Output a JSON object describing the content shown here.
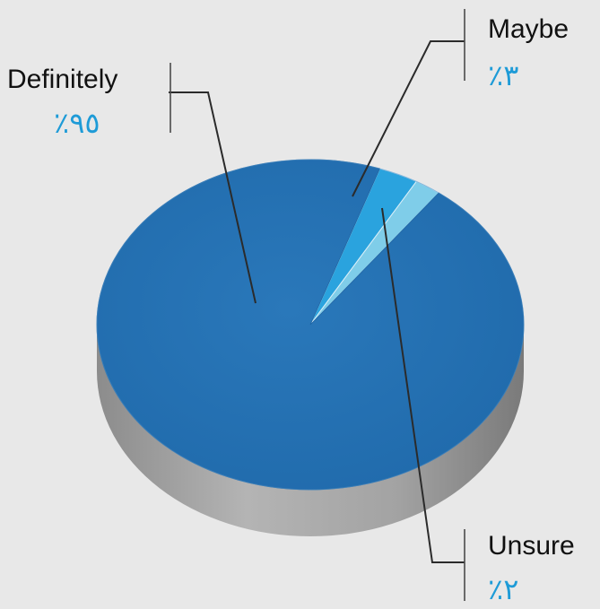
{
  "chart_data": {
    "type": "pie",
    "style": "3d",
    "categories": [
      "Definitely",
      "Maybe",
      "Unsure"
    ],
    "values": [
      95,
      3,
      2
    ],
    "value_labels": [
      "٪٩٥",
      "٪٣",
      "٪٢"
    ],
    "title": "",
    "legend": "none",
    "colors": {
      "Definitely": "#2371b4",
      "Maybe": "#2aa3de",
      "Unsure": "#7fcde9",
      "label_text": "#1e9bd7",
      "side": "#9a9a9a",
      "background": "#e8e8e8"
    }
  }
}
